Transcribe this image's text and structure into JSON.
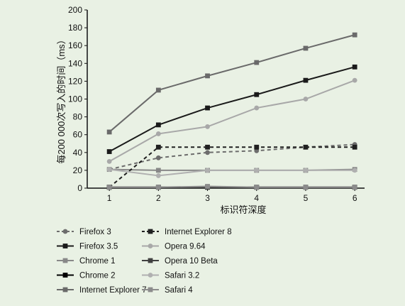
{
  "chart_data": {
    "type": "line",
    "title": "",
    "xlabel": "标识符深度",
    "ylabel": "每200 000次写入的时间（ms）",
    "x": [
      1,
      2,
      3,
      4,
      5,
      6
    ],
    "xlim": [
      0.55,
      6.2
    ],
    "ylim": [
      0,
      200
    ],
    "yticks": [
      0,
      20,
      40,
      60,
      80,
      100,
      120,
      140,
      160,
      180,
      200
    ],
    "grid": false,
    "legend_position": "bottom",
    "series": [
      {
        "name": "Firefox 3",
        "values": [
          21,
          34,
          40,
          42,
          46,
          49
        ],
        "color": "#6d6d6d",
        "dash": "dashed",
        "marker": "circle"
      },
      {
        "name": "Firefox 3.5",
        "values": [
          41,
          71,
          90,
          105,
          121,
          136
        ],
        "color": "#1a1a1a",
        "dash": "solid",
        "marker": "square"
      },
      {
        "name": "Chrome 1",
        "values": [
          21,
          20,
          20,
          20,
          20,
          21
        ],
        "color": "#888888",
        "dash": "solid",
        "marker": "square"
      },
      {
        "name": "Chrome 2",
        "values": [
          1,
          1,
          1,
          1,
          1,
          1
        ],
        "color": "#000000",
        "dash": "solid",
        "marker": "square"
      },
      {
        "name": "Internet Explorer 7",
        "values": [
          63,
          110,
          126,
          141,
          157,
          172
        ],
        "color": "#6a6a6a",
        "dash": "solid",
        "marker": "square"
      },
      {
        "name": "Internet Explorer 8",
        "values": [
          1,
          46,
          46,
          46,
          46,
          46
        ],
        "color": "#202020",
        "dash": "dashed",
        "marker": "square"
      },
      {
        "name": "Opera 9.64",
        "values": [
          30,
          61,
          69,
          90,
          100,
          121
        ],
        "color": "#a8a8a8",
        "dash": "solid",
        "marker": "circle"
      },
      {
        "name": "Opera 10 Beta",
        "values": [
          1,
          1,
          1,
          1,
          1,
          1
        ],
        "color": "#404040",
        "dash": "solid",
        "marker": "square"
      },
      {
        "name": "Safari 3.2",
        "values": [
          21,
          14,
          20,
          20,
          20,
          20
        ],
        "color": "#b0b0b0",
        "dash": "solid",
        "marker": "circle"
      },
      {
        "name": "Safari 4",
        "values": [
          1,
          1,
          2,
          1,
          1,
          1
        ],
        "color": "#8c8c8c",
        "dash": "solid",
        "marker": "square"
      }
    ]
  }
}
